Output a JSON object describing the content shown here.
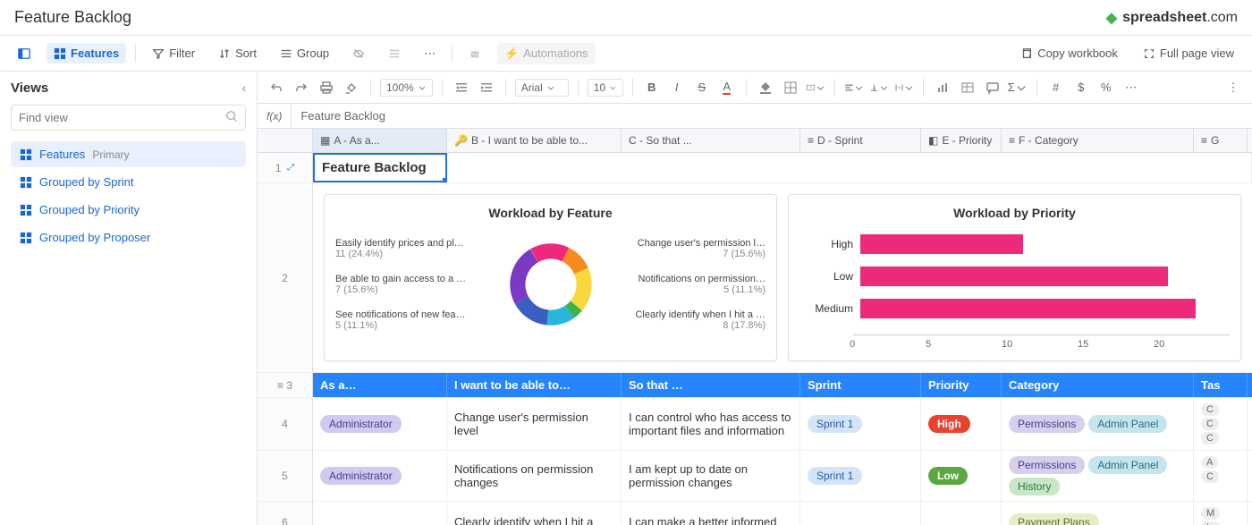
{
  "page": {
    "title": "Feature Backlog"
  },
  "brand": {
    "name": "spreadsheet",
    "suffix": ".com"
  },
  "viewbar": {
    "features": "Features",
    "filter": "Filter",
    "sort": "Sort",
    "group": "Group",
    "automations": "Automations",
    "copy": "Copy workbook",
    "fullpage": "Full page view"
  },
  "sidebar": {
    "title": "Views",
    "search_placeholder": "Find view",
    "items": [
      {
        "label": "Features",
        "badge": "Primary",
        "active": true
      },
      {
        "label": "Grouped by Sprint"
      },
      {
        "label": "Grouped by Priority"
      },
      {
        "label": "Grouped by Proposer"
      }
    ]
  },
  "toolbar": {
    "zoom": "100%",
    "font": "Arial",
    "fontsize": "10"
  },
  "fx": {
    "value": "Feature Backlog"
  },
  "columns": {
    "a": "A - As a...",
    "b": "B - I want to be able to...",
    "c": "C - So that ...",
    "d": "D - Sprint",
    "e": "E - Priority",
    "f": "F - Category",
    "g": "G"
  },
  "row1": {
    "value": "Feature Backlog"
  },
  "donut_chart": {
    "title": "Workload by Feature",
    "slices": [
      {
        "label": "Change user's permission l…",
        "pct": "7 (15.6%)",
        "value": 15.6,
        "color": "#ec297b"
      },
      {
        "label": "Notifications on permission…",
        "pct": "5 (11.1%)",
        "value": 11.1,
        "color": "#f58b1f"
      },
      {
        "label": "Clearly identify when I hit a …",
        "pct": "8 (17.8%)",
        "value": 17.8,
        "color": "#f7d93e"
      },
      {
        "label": "—",
        "pct": "",
        "value": 4.3,
        "color": "#3cb44b"
      },
      {
        "label": "See notifications of new fea…",
        "pct": "5 (11.1%)",
        "value": 11.1,
        "color": "#29b6d9"
      },
      {
        "label": "Be able to gain access to a …",
        "pct": "7 (15.6%)",
        "value": 15.6,
        "color": "#3b5fc0"
      },
      {
        "label": "Easily identify prices and pl…",
        "pct": "11 (24.4%)",
        "value": 24.4,
        "color": "#7b39c4"
      }
    ],
    "left_labels": [
      {
        "t": "Easily identify prices and pl…",
        "s": "11 (24.4%)"
      },
      {
        "t": "Be able to gain access to a …",
        "s": "7 (15.6%)"
      },
      {
        "t": "See notifications of new fea…",
        "s": "5 (11.1%)"
      }
    ],
    "right_labels": [
      {
        "t": "Change user's permission l…",
        "s": "7 (15.6%)"
      },
      {
        "t": "Notifications on permission…",
        "s": "5 (11.1%)"
      },
      {
        "t": "Clearly identify when I hit a …",
        "s": "8 (17.8%)"
      }
    ]
  },
  "bar_chart": {
    "title": "Workload by Priority",
    "bar_color": "#ec297b",
    "max": 20,
    "ticks": [
      "0",
      "5",
      "10",
      "15",
      "20"
    ],
    "bars": [
      {
        "label": "High",
        "value": 9
      },
      {
        "label": "Low",
        "value": 17
      },
      {
        "label": "Medium",
        "value": 18.5
      }
    ]
  },
  "header_row": {
    "a": "As a…",
    "b": "I want to be able to…",
    "c": "So that …",
    "d": "Sprint",
    "e": "Priority",
    "f": "Category",
    "g": "Tas"
  },
  "rows": [
    {
      "num": "4",
      "role": "Administrator",
      "want": "Change user's permission level",
      "so": "I can control who has access to important files and information",
      "sprint": "Sprint 1",
      "priority": "High",
      "priority_class": "pill-high",
      "cats": [
        [
          "Permissions",
          "pill-perm"
        ],
        [
          "Admin Panel",
          "pill-admin"
        ]
      ],
      "tasks": [
        "C",
        "C",
        "C"
      ]
    },
    {
      "num": "5",
      "role": "Administrator",
      "want": "Notifications on permission changes",
      "so": "I am kept up to date on permission changes",
      "sprint": "Sprint 1",
      "priority": "Low",
      "priority_class": "pill-low",
      "cats": [
        [
          "Permissions",
          "pill-perm"
        ],
        [
          "Admin Panel",
          "pill-admin"
        ],
        [
          "History",
          "pill-hist"
        ]
      ],
      "tasks": [
        "A",
        "C"
      ]
    },
    {
      "num": "6",
      "role": "",
      "want": "Clearly identify when I hit a",
      "so": "I can make a better informed",
      "sprint": "",
      "priority": "",
      "priority_class": "",
      "cats": [
        [
          "Payment Plans",
          "pill-pay"
        ]
      ],
      "tasks": [
        "M",
        "Ic"
      ]
    }
  ]
}
